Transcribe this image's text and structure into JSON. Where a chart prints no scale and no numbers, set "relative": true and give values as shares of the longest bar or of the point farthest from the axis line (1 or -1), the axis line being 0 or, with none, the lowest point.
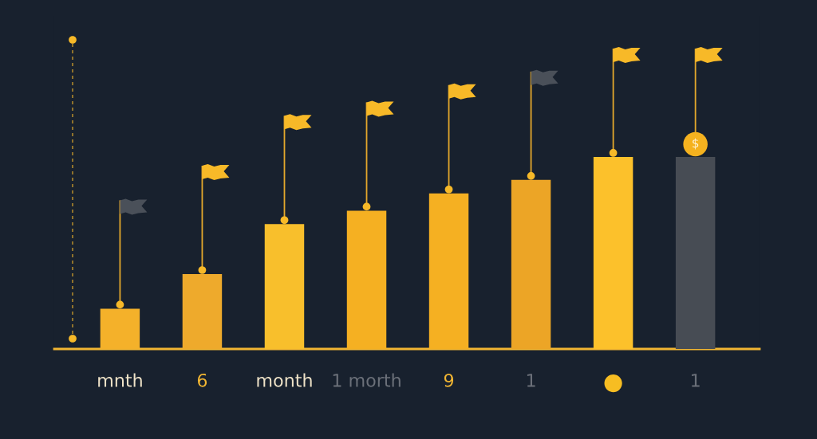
{
  "chart_data": {
    "type": "bar",
    "relative": true,
    "categories": [
      "mnth",
      "6",
      "month",
      "1 morth",
      "9",
      "1",
      null,
      "1"
    ],
    "values": [
      0.21,
      0.39,
      0.65,
      0.72,
      0.81,
      0.88,
      1.0,
      1.0
    ],
    "colors": [
      "#f4b12a",
      "#eeaa2c",
      "#f8bf2c",
      "#f5b022",
      "#f5b022",
      "#eca526",
      "#fcc12b",
      "#474c54"
    ],
    "annotations": [
      "$"
    ]
  }
}
